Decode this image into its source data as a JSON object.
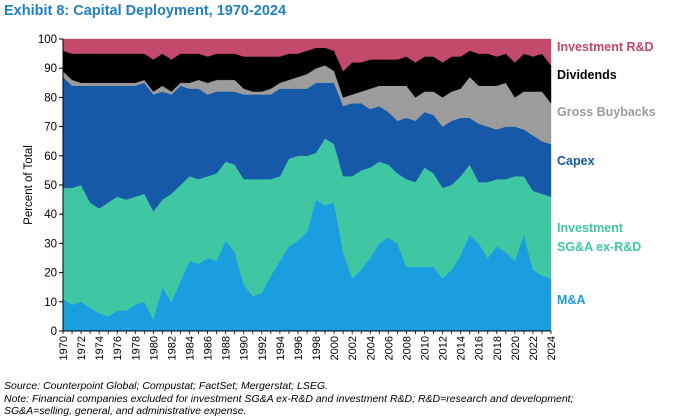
{
  "title": "Exhibit 8: Capital Deployment, 1970-2024",
  "footnotes": {
    "source": "Source: Counterpoint Global; Compustat; FactSet; Mergerstat; LSEG.",
    "note_line1": "Note: Financial companies excluded for investment SG&A ex-R&D and investment R&D; R&D=research and development;",
    "note_line2": "SG&A=selling, general, and administrative expense."
  },
  "chart_data": {
    "type": "area",
    "stacked": true,
    "ylabel": "Percent of Total",
    "xlabel": "",
    "ylim": [
      0,
      100
    ],
    "yticks": [
      0,
      10,
      20,
      30,
      40,
      50,
      60,
      70,
      80,
      90,
      100
    ],
    "xticks": [
      1970,
      1972,
      1974,
      1976,
      1978,
      1980,
      1982,
      1984,
      1986,
      1988,
      1990,
      1992,
      1994,
      1996,
      1998,
      2000,
      2002,
      2004,
      2006,
      2008,
      2010,
      2012,
      2014,
      2016,
      2018,
      2020,
      2022,
      2024
    ],
    "grid": false,
    "legend": "right",
    "x": [
      1970,
      1971,
      1972,
      1973,
      1974,
      1975,
      1976,
      1977,
      1978,
      1979,
      1980,
      1981,
      1982,
      1983,
      1984,
      1985,
      1986,
      1987,
      1988,
      1989,
      1990,
      1991,
      1992,
      1993,
      1994,
      1995,
      1996,
      1997,
      1998,
      1999,
      2000,
      2001,
      2002,
      2003,
      2004,
      2005,
      2006,
      2007,
      2008,
      2009,
      2010,
      2011,
      2012,
      2013,
      2014,
      2015,
      2016,
      2017,
      2018,
      2019,
      2020,
      2021,
      2022,
      2023,
      2024
    ],
    "series": [
      {
        "name": "M&A",
        "color": "#1a9ee0",
        "label_color": "#1a9ee0",
        "values": [
          11,
          9,
          10,
          8,
          6,
          5,
          7,
          7,
          9,
          10,
          4,
          15,
          10,
          17,
          24,
          23,
          25,
          24,
          31,
          27,
          16,
          12,
          13,
          19,
          24,
          29,
          31,
          34,
          45,
          43,
          44,
          27,
          18,
          21,
          25,
          30,
          32,
          30,
          22,
          22,
          22,
          22,
          18,
          21,
          26,
          33,
          30,
          25,
          29,
          27,
          24,
          33,
          21,
          19,
          18
        ]
      },
      {
        "name": "Investment SG&A ex-R&D",
        "color": "#3fc7a4",
        "label_color": "#3fc7a4",
        "values": [
          38,
          40,
          40,
          36,
          36,
          39,
          39,
          38,
          37,
          37,
          37,
          30,
          37,
          33,
          29,
          29,
          28,
          30,
          27,
          30,
          36,
          40,
          39,
          33,
          29,
          30,
          29,
          26,
          16,
          23,
          20,
          26,
          35,
          34,
          31,
          28,
          25,
          24,
          30,
          29,
          34,
          32,
          31,
          29,
          27,
          24,
          21,
          26,
          23,
          25,
          29,
          20,
          27,
          28,
          28
        ]
      },
      {
        "name": "Capex",
        "color": "#1659a8",
        "label_color": "#1659a8",
        "values": [
          38,
          35,
          34,
          40,
          42,
          40,
          38,
          39,
          38,
          38,
          40,
          37,
          34,
          34,
          30,
          31,
          28,
          28,
          24,
          25,
          29,
          29,
          29,
          29,
          30,
          24,
          23,
          23,
          24,
          19,
          21,
          24,
          25,
          23,
          20,
          19,
          18,
          18,
          21,
          21,
          19,
          20,
          21,
          22,
          20,
          16,
          20,
          19,
          17,
          18,
          17,
          16,
          19,
          18,
          18
        ]
      },
      {
        "name": "Gross Buybacks",
        "color": "#9c9c9c",
        "label_color": "#9b9b9b",
        "values": [
          2,
          2,
          1,
          1,
          1,
          1,
          1,
          1,
          1,
          1,
          1,
          2,
          1,
          1,
          2,
          3,
          4,
          4,
          4,
          4,
          2,
          1,
          1,
          2,
          2,
          3,
          4,
          5,
          5,
          6,
          4,
          3,
          3,
          4,
          7,
          7,
          9,
          12,
          11,
          8,
          7,
          8,
          10,
          10,
          10,
          14,
          13,
          14,
          15,
          15,
          10,
          13,
          15,
          17,
          14
        ]
      },
      {
        "name": "Dividends",
        "color": "#000000",
        "label_color": "#000000",
        "values": [
          7,
          9,
          10,
          10,
          10,
          10,
          10,
          10,
          10,
          9,
          11,
          11,
          11,
          10,
          10,
          9,
          9,
          9,
          9,
          9,
          11,
          12,
          12,
          11,
          9,
          9,
          8,
          8,
          7,
          6,
          7,
          9,
          11,
          10,
          10,
          9,
          9,
          9,
          10,
          12,
          12,
          12,
          12,
          12,
          11,
          9,
          11,
          11,
          10,
          10,
          12,
          13,
          12,
          13,
          13
        ]
      },
      {
        "name": "Investment R&D",
        "color": "#c34a6a",
        "label_color": "#c4456a",
        "values": [
          4,
          5,
          5,
          5,
          5,
          5,
          5,
          5,
          5,
          5,
          7,
          5,
          7,
          5,
          5,
          5,
          6,
          5,
          5,
          5,
          6,
          6,
          6,
          6,
          6,
          5,
          5,
          4,
          3,
          3,
          4,
          11,
          8,
          8,
          7,
          7,
          7,
          7,
          6,
          8,
          6,
          6,
          8,
          6,
          6,
          4,
          5,
          5,
          6,
          5,
          8,
          5,
          6,
          5,
          9
        ]
      }
    ]
  }
}
